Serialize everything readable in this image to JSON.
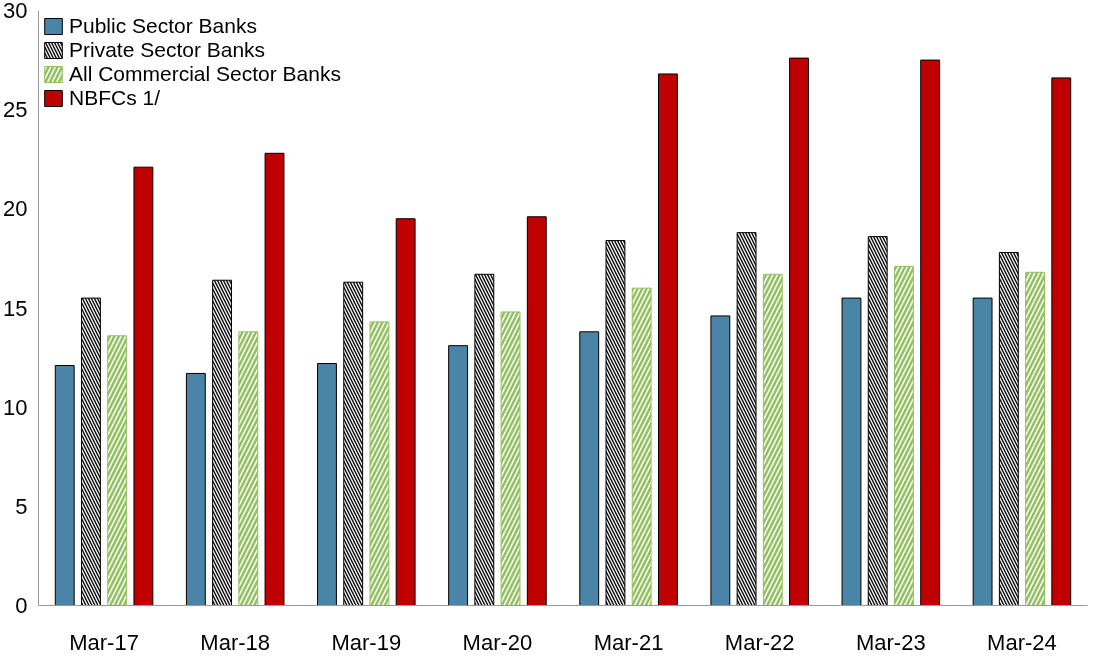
{
  "chart_data": {
    "type": "bar",
    "categories": [
      "Mar-17",
      "Mar-18",
      "Mar-19",
      "Mar-20",
      "Mar-21",
      "Mar-22",
      "Mar-23",
      "Mar-24"
    ],
    "series": [
      {
        "name": "Public Sector Banks",
        "color": "#4a85a8",
        "values": [
          12.1,
          11.7,
          12.2,
          13.1,
          13.8,
          14.6,
          15.5,
          15.5
        ]
      },
      {
        "name": "Private Sector Banks",
        "color": "#000000",
        "values": [
          15.5,
          16.4,
          16.3,
          16.7,
          18.4,
          18.8,
          18.6,
          17.8
        ]
      },
      {
        "name": "All Commercial Sector Banks",
        "color": "#92c060",
        "values": [
          13.6,
          13.8,
          14.3,
          14.8,
          16.0,
          16.7,
          17.1,
          16.8
        ]
      },
      {
        "name": "NBFCs 1/",
        "color": "#c00000",
        "values": [
          22.1,
          22.8,
          19.5,
          19.6,
          26.8,
          27.6,
          27.5,
          26.6
        ]
      }
    ],
    "ylim": [
      0,
      30
    ],
    "yticks": [
      0,
      5,
      10,
      15,
      20,
      25,
      30
    ],
    "grid": false,
    "legend": "top left"
  }
}
